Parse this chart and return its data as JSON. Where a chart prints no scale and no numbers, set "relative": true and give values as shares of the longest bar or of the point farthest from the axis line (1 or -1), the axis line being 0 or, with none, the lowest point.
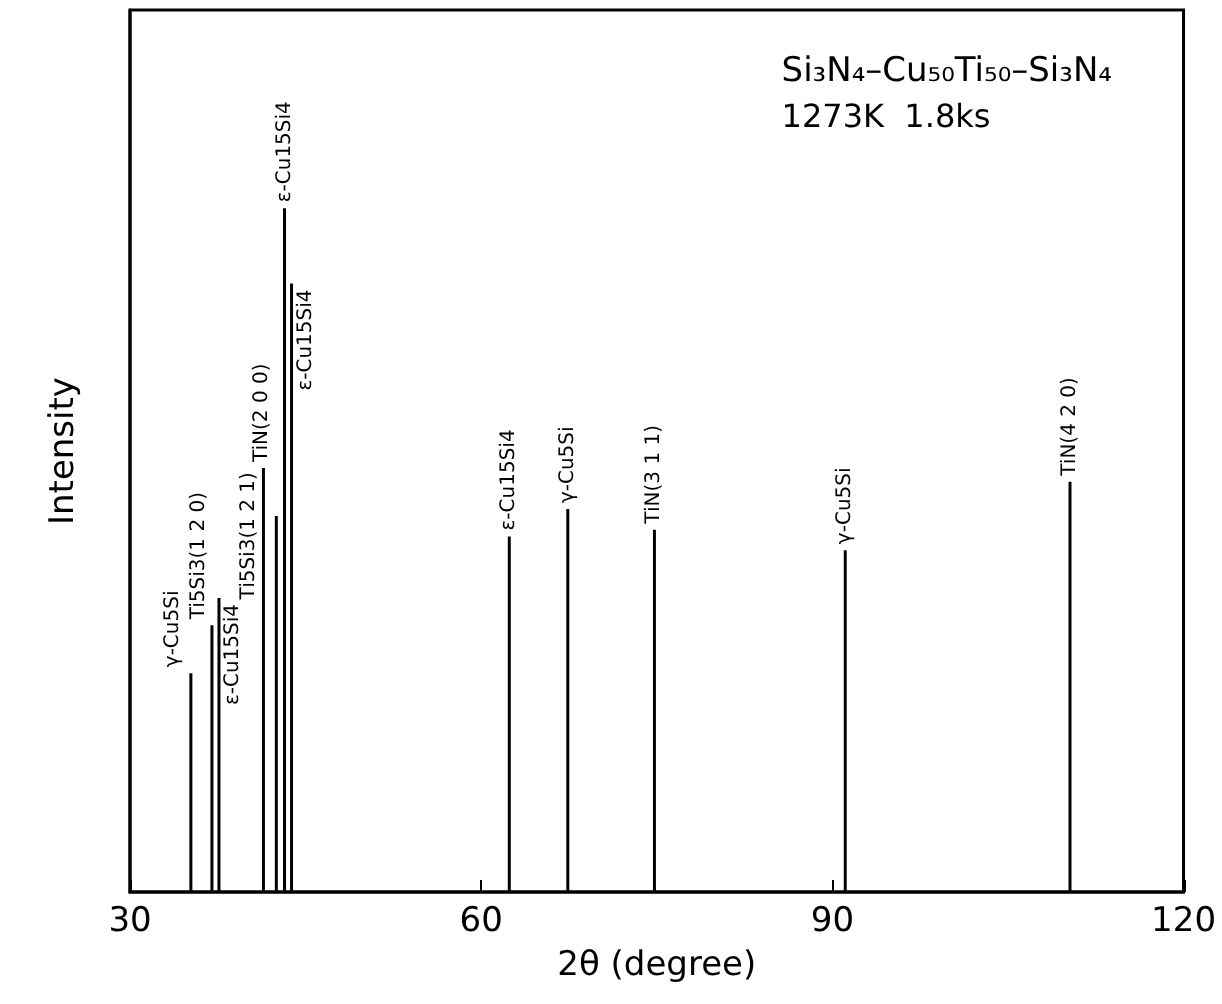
{
  "chart_data": {
    "type": "bar",
    "relative": true,
    "title": "Si₃N₄–Cu₅₀Ti₅₀–Si₃N₄",
    "subtitle": "1273K  1.8ks",
    "xlabel": "2θ (degree)",
    "ylabel": "Intensity",
    "x": [
      35.2,
      37.0,
      37.6,
      41.4,
      42.5,
      43.2,
      43.8,
      62.4,
      67.4,
      74.8,
      91.1,
      110.3
    ],
    "values": [
      0.32,
      0.39,
      0.43,
      0.62,
      0.55,
      1,
      0.89,
      0.52,
      0.56,
      0.53,
      0.5,
      0.6
    ],
    "color": "#000000",
    "xlim": [
      30,
      120
    ],
    "xticks": [
      30,
      60,
      90,
      120
    ],
    "grid": false,
    "annotations": [
      {
        "text": "γ-Cu5Si",
        "x": 35.2,
        "y": 0.32
      },
      {
        "text": "Ti5Si3(1 2 0)",
        "x": 37.0,
        "y": 0.39
      },
      {
        "text": "ε-Cu15Si4",
        "x": 37.6,
        "y": 0.43
      },
      {
        "text": "Ti5Si3(1 2 1)",
        "x": 41.4,
        "y": 0.62
      },
      {
        "text": "TiN(2 0 0)",
        "x": 42.5,
        "y": 0.55
      },
      {
        "text": "ε-Cu15Si4",
        "x": 43.2,
        "y": 1
      },
      {
        "text": "ε-Cu15Si4",
        "x": 43.8,
        "y": 0.89
      },
      {
        "text": "ε-Cu15Si4",
        "x": 62.4,
        "y": 0.52
      },
      {
        "text": "γ-Cu5Si",
        "x": 67.4,
        "y": 0.56
      },
      {
        "text": "TiN(3 1 1)",
        "x": 74.8,
        "y": 0.53
      },
      {
        "text": "γ-Cu5Si",
        "x": 91.1,
        "y": 0.5
      },
      {
        "text": "TiN(4 2 0)",
        "x": 110.3,
        "y": 0.6
      }
    ]
  }
}
